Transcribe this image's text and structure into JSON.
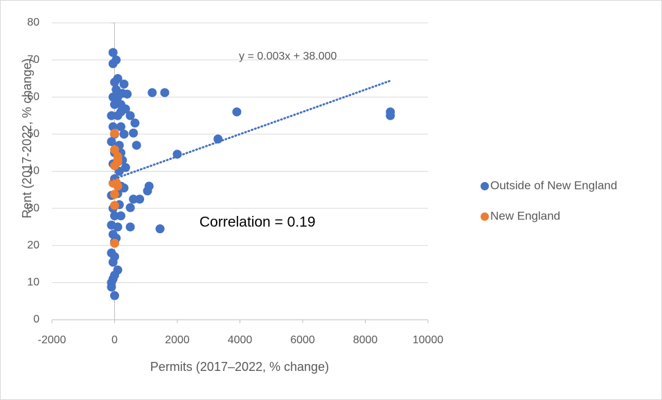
{
  "chart_data": {
    "type": "scatter",
    "x_label": "Permits (2017–2022, % change)",
    "y_label": "Rent (2017-2022, % change)",
    "annotation": "Correlation = 0.19",
    "xlim": [
      -2000,
      10000
    ],
    "xticks": [
      -2000,
      0,
      2000,
      4000,
      6000,
      8000,
      10000
    ],
    "ylim": [
      0,
      80
    ],
    "yticks": [
      0,
      10,
      20,
      30,
      40,
      50,
      60,
      70,
      80
    ],
    "grid": true,
    "legend": "right",
    "trendline": {
      "label": "y = 0.003x + 38.000",
      "slope": 0.003,
      "intercept": 38,
      "x": [
        -100,
        8800
      ],
      "color": "#4472c4"
    },
    "series": [
      {
        "name": "Outside of New England",
        "color": "#4472c4",
        "x": [
          8800,
          8800,
          3900,
          3300,
          2000,
          1600,
          1200,
          1450,
          1100,
          1050,
          800,
          600,
          500,
          500,
          500,
          600,
          700,
          650,
          400,
          300,
          350,
          350,
          300,
          300,
          200,
          100,
          100,
          -50,
          -50,
          50,
          0,
          -100,
          -50,
          0,
          -100,
          0,
          -50,
          0,
          -100,
          -50,
          0,
          -100,
          -50,
          0,
          -100,
          -50,
          0,
          -100,
          -100,
          0,
          100,
          100,
          200,
          200,
          150,
          200,
          150,
          200,
          100,
          50,
          0,
          -50,
          150,
          250,
          100,
          200,
          0,
          50,
          -50,
          250
        ],
        "y": [
          56,
          55,
          56,
          48.7,
          44.6,
          61.2,
          61.2,
          24.5,
          36,
          34.7,
          32.5,
          32.5,
          25,
          30.2,
          55,
          50.3,
          47,
          53,
          60.8,
          63.5,
          56.8,
          41,
          35.5,
          50,
          58,
          65,
          13.4,
          72,
          69,
          70,
          64,
          55,
          60,
          50,
          48,
          45,
          42,
          38,
          33.5,
          30,
          28,
          25.5,
          23,
          21,
          18,
          15.5,
          12,
          10,
          8.8,
          6.5,
          60,
          55,
          52,
          45,
          40,
          36,
          31,
          28,
          25,
          22,
          17,
          11,
          47,
          43,
          34,
          56,
          58,
          62,
          52,
          61
        ]
      },
      {
        "name": "New England",
        "color": "#ed7d31",
        "x": [
          0,
          0,
          100,
          100,
          0,
          100,
          -50,
          0,
          0,
          0,
          50,
          100
        ],
        "y": [
          50.2,
          45.8,
          44,
          42.5,
          41.5,
          36,
          36.8,
          33.8,
          30.8,
          20.6,
          37,
          43
        ]
      }
    ]
  }
}
